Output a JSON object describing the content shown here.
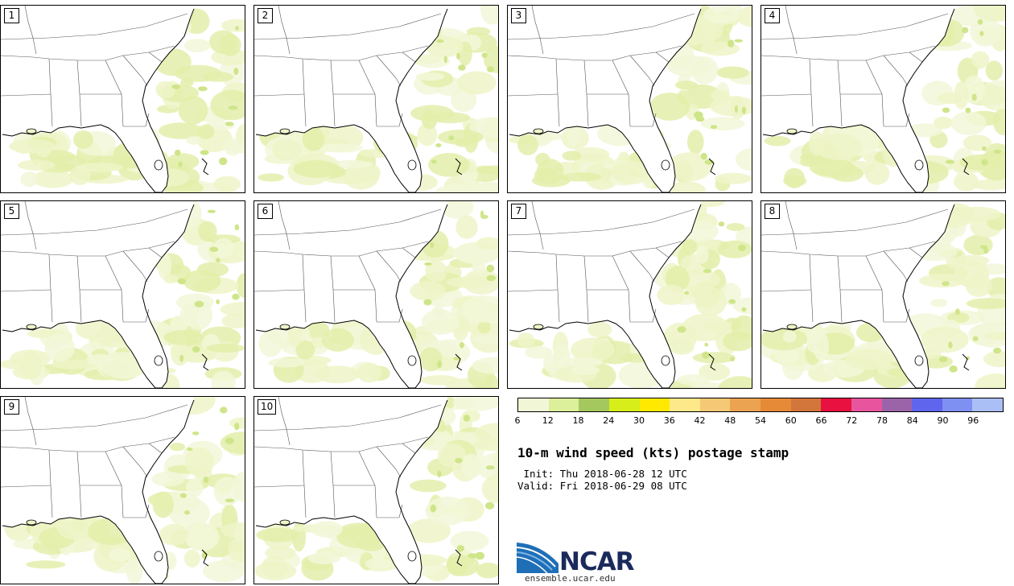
{
  "panels": [
    {
      "label": "1"
    },
    {
      "label": "2"
    },
    {
      "label": "3"
    },
    {
      "label": "4"
    },
    {
      "label": "5"
    },
    {
      "label": "6"
    },
    {
      "label": "7"
    },
    {
      "label": "8"
    },
    {
      "label": "9"
    },
    {
      "label": "10"
    }
  ],
  "colorbar": {
    "colors": [
      "#f1f7d6",
      "#dcef9b",
      "#a4c85e",
      "#d7ee1a",
      "#ffe900",
      "#fde98a",
      "#f4c874",
      "#eca351",
      "#e68a37",
      "#d3763b",
      "#e8113f",
      "#e8559e",
      "#9c64a8",
      "#5f65ec",
      "#7f90f3",
      "#aabff5"
    ],
    "ticks": [
      "6",
      "12",
      "18",
      "24",
      "30",
      "36",
      "42",
      "48",
      "54",
      "60",
      "66",
      "72",
      "78",
      "84",
      "90",
      "96"
    ]
  },
  "title": "10-m wind speed (kts) postage stamp",
  "init_line": " Init: Thu 2018-06-28 12 UTC",
  "valid_line": "Valid: Fri 2018-06-29 08 UTC",
  "logo": {
    "name": "NCAR",
    "url": "ensemble.ucar.edu"
  }
}
